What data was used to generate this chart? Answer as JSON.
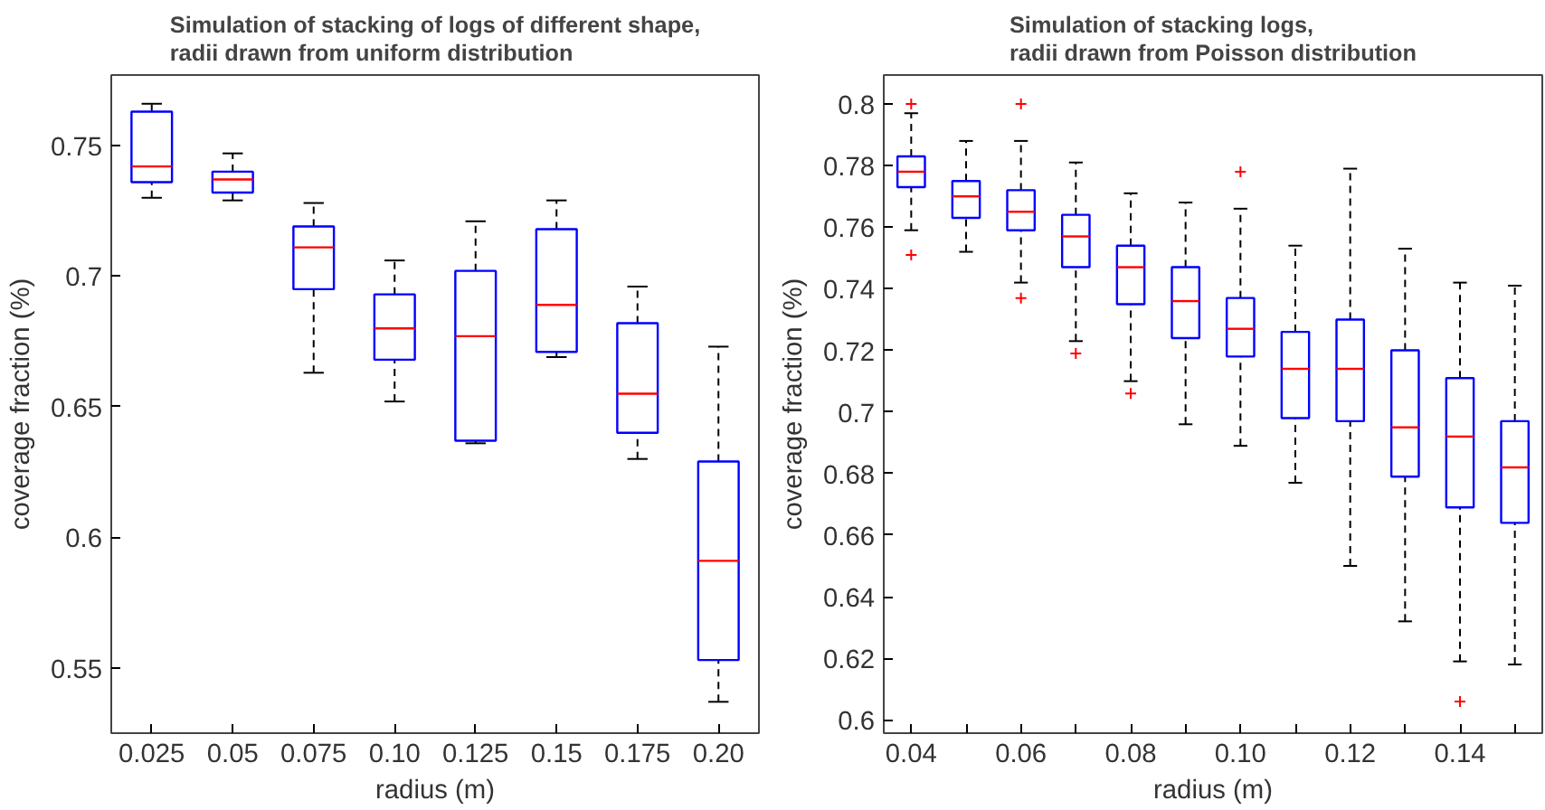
{
  "chart_data": [
    {
      "type": "box",
      "title": "Simulation of stacking of logs of different shape,\nradii drawn from uniform distribution",
      "xlabel": "radius (m)",
      "ylabel": "coverage fraction (%)",
      "categories": [
        "0.025",
        "0.05",
        "0.075",
        "0.10",
        "0.125",
        "0.15",
        "0.175",
        "0.20"
      ],
      "ylim": [
        0.525,
        0.777
      ],
      "yticks": [
        0.55,
        0.6,
        0.65,
        0.7,
        0.75
      ],
      "grid": false,
      "series": [
        {
          "color": "#0000ff",
          "boxes": [
            {
              "low": 0.73,
              "q1": 0.736,
              "median": 0.742,
              "q3": 0.763,
              "high": 0.766
            },
            {
              "low": 0.729,
              "q1": 0.732,
              "median": 0.737,
              "q3": 0.74,
              "high": 0.747
            },
            {
              "low": 0.663,
              "q1": 0.695,
              "median": 0.711,
              "q3": 0.719,
              "high": 0.728
            },
            {
              "low": 0.652,
              "q1": 0.668,
              "median": 0.68,
              "q3": 0.693,
              "high": 0.706
            },
            {
              "low": 0.636,
              "q1": 0.637,
              "median": 0.677,
              "q3": 0.702,
              "high": 0.721
            },
            {
              "low": 0.669,
              "q1": 0.671,
              "median": 0.689,
              "q3": 0.718,
              "high": 0.729
            },
            {
              "low": 0.63,
              "q1": 0.64,
              "median": 0.655,
              "q3": 0.682,
              "high": 0.696
            },
            {
              "low": 0.537,
              "q1": 0.553,
              "median": 0.591,
              "q3": 0.629,
              "high": 0.673
            }
          ]
        }
      ]
    },
    {
      "type": "box",
      "title": "Simulation of stacking logs,\nradii drawn from Poisson distribution",
      "xlabel": "radius (m)",
      "ylabel": "coverage fraction (%)",
      "x": [
        0.04,
        0.05,
        0.06,
        0.07,
        0.08,
        0.09,
        0.1,
        0.11,
        0.12,
        0.13,
        0.14,
        0.15
      ],
      "xlim": [
        0.035,
        0.155
      ],
      "xticks": [
        {
          "value": 0.04,
          "label": "0.04"
        },
        {
          "value": 0.05,
          "label": null
        },
        {
          "value": 0.06,
          "label": "0.06"
        },
        {
          "value": 0.07,
          "label": null
        },
        {
          "value": 0.08,
          "label": "0.08"
        },
        {
          "value": 0.09,
          "label": null
        },
        {
          "value": 0.1,
          "label": "0.10"
        },
        {
          "value": 0.11,
          "label": null
        },
        {
          "value": 0.12,
          "label": "0.12"
        },
        {
          "value": 0.13,
          "label": null
        },
        {
          "value": 0.14,
          "label": "0.14"
        },
        {
          "value": 0.15,
          "label": null
        }
      ],
      "ylim": [
        0.5957,
        0.8094
      ],
      "yticks": [
        0.6,
        0.62,
        0.64,
        0.66,
        0.68,
        0.7,
        0.72,
        0.74,
        0.76,
        0.78,
        0.8
      ],
      "grid": false,
      "series": [
        {
          "color": "#0000ff",
          "boxes": [
            {
              "low": 0.759,
              "q1": 0.773,
              "median": 0.778,
              "q3": 0.783,
              "high": 0.797,
              "outliers": [
                0.8,
                0.751
              ]
            },
            {
              "low": 0.752,
              "q1": 0.763,
              "median": 0.77,
              "q3": 0.775,
              "high": 0.788
            },
            {
              "low": 0.742,
              "q1": 0.759,
              "median": 0.765,
              "q3": 0.772,
              "high": 0.788,
              "outliers": [
                0.8,
                0.737
              ]
            },
            {
              "low": 0.723,
              "q1": 0.747,
              "median": 0.757,
              "q3": 0.764,
              "high": 0.781,
              "outliers": [
                0.719
              ]
            },
            {
              "low": 0.71,
              "q1": 0.735,
              "median": 0.747,
              "q3": 0.754,
              "high": 0.771,
              "outliers": [
                0.706
              ]
            },
            {
              "low": 0.696,
              "q1": 0.724,
              "median": 0.736,
              "q3": 0.747,
              "high": 0.768
            },
            {
              "low": 0.689,
              "q1": 0.718,
              "median": 0.727,
              "q3": 0.737,
              "high": 0.766,
              "outliers": [
                0.778
              ]
            },
            {
              "low": 0.677,
              "q1": 0.698,
              "median": 0.714,
              "q3": 0.726,
              "high": 0.754
            },
            {
              "low": 0.65,
              "q1": 0.697,
              "median": 0.714,
              "q3": 0.73,
              "high": 0.779
            },
            {
              "low": 0.632,
              "q1": 0.679,
              "median": 0.695,
              "q3": 0.72,
              "high": 0.753
            },
            {
              "low": 0.619,
              "q1": 0.669,
              "median": 0.692,
              "q3": 0.711,
              "high": 0.742,
              "outliers": [
                0.606
              ]
            },
            {
              "low": 0.618,
              "q1": 0.664,
              "median": 0.682,
              "q3": 0.697,
              "high": 0.741
            }
          ]
        }
      ]
    }
  ]
}
